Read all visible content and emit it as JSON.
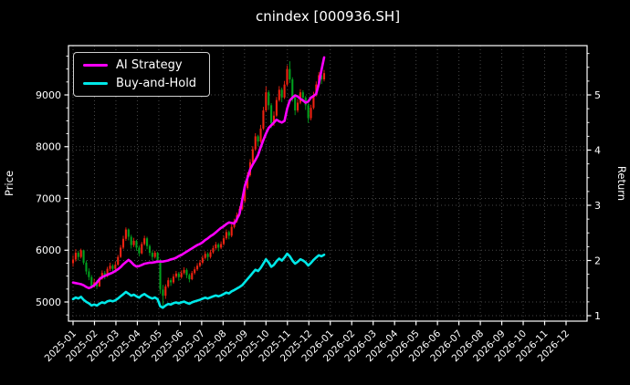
{
  "chart_data": {
    "type": "candlestick+line",
    "title": "cnindex [000936.SH]",
    "grid": true,
    "background": "#000000",
    "grid_color": "#494949",
    "spine_color": "#ffffff",
    "text_color": "#ffffff",
    "left_axis": {
      "label": "Price",
      "ticks": [
        5000,
        6000,
        7000,
        8000,
        9000
      ],
      "range": [
        4630,
        9952
      ],
      "minor_step": 250
    },
    "right_axis": {
      "label": "Return",
      "ticks": [
        1,
        2,
        3,
        4,
        5
      ],
      "range": [
        0.901,
        5.893
      ],
      "minor_step": 0.25
    },
    "x_axis": {
      "labels": [
        "2025-01",
        "2025-02",
        "2025-03",
        "2025-04",
        "2025-05",
        "2025-06",
        "2025-07",
        "2025-08",
        "2025-09",
        "2025-10",
        "2025-11",
        "2025-12",
        "2026-01",
        "2026-02",
        "2026-03",
        "2026-04",
        "2026-05",
        "2026-06",
        "2026-07",
        "2026-08",
        "2026-09",
        "2026-10",
        "2026-11",
        "2026-12"
      ],
      "range": [
        -0.213,
        23.98
      ]
    },
    "legend": {
      "position": "upper-left"
    },
    "candles": {
      "axis": "price",
      "up_color": "#ee2211",
      "down_color": "#00a01e",
      "t0": 0,
      "dt": 0.1233,
      "ohlc": [
        [
          5750,
          5900,
          5680,
          5820
        ],
        [
          5820,
          6020,
          5780,
          5950
        ],
        [
          5950,
          5990,
          5800,
          5870
        ],
        [
          5870,
          6030,
          5840,
          6000
        ],
        [
          6000,
          6010,
          5720,
          5760
        ],
        [
          5760,
          5800,
          5530,
          5590
        ],
        [
          5590,
          5650,
          5420,
          5480
        ],
        [
          5480,
          5520,
          5260,
          5310
        ],
        [
          5310,
          5450,
          5280,
          5380
        ],
        [
          5380,
          5420,
          5250,
          5300
        ],
        [
          5300,
          5490,
          5290,
          5450
        ],
        [
          5450,
          5610,
          5430,
          5560
        ],
        [
          5560,
          5600,
          5440,
          5500
        ],
        [
          5500,
          5680,
          5480,
          5640
        ],
        [
          5640,
          5760,
          5600,
          5700
        ],
        [
          5700,
          5730,
          5580,
          5640
        ],
        [
          5640,
          5780,
          5620,
          5720
        ],
        [
          5720,
          5910,
          5700,
          5870
        ],
        [
          5870,
          6100,
          5850,
          6050
        ],
        [
          6050,
          6280,
          6020,
          6220
        ],
        [
          6220,
          6440,
          6180,
          6400
        ],
        [
          6400,
          6420,
          6190,
          6260
        ],
        [
          6260,
          6300,
          6030,
          6100
        ],
        [
          6100,
          6240,
          6060,
          6180
        ],
        [
          6180,
          6200,
          5990,
          6050
        ],
        [
          6050,
          6090,
          5880,
          5940
        ],
        [
          5940,
          6160,
          5920,
          6120
        ],
        [
          6120,
          6280,
          6090,
          6230
        ],
        [
          6230,
          6260,
          6020,
          6080
        ],
        [
          6080,
          6110,
          5890,
          5950
        ],
        [
          5950,
          5990,
          5810,
          5870
        ],
        [
          5870,
          5990,
          5840,
          5950
        ],
        [
          5950,
          5970,
          5750,
          5810
        ],
        [
          5810,
          5830,
          5160,
          5240
        ],
        [
          5240,
          5330,
          4880,
          5120
        ],
        [
          5120,
          5340,
          5060,
          5300
        ],
        [
          5300,
          5470,
          5270,
          5420
        ],
        [
          5420,
          5460,
          5310,
          5380
        ],
        [
          5380,
          5540,
          5350,
          5490
        ],
        [
          5490,
          5600,
          5460,
          5550
        ],
        [
          5550,
          5580,
          5410,
          5480
        ],
        [
          5480,
          5610,
          5450,
          5560
        ],
        [
          5560,
          5670,
          5530,
          5620
        ],
        [
          5620,
          5650,
          5460,
          5520
        ],
        [
          5520,
          5550,
          5380,
          5440
        ],
        [
          5440,
          5600,
          5420,
          5560
        ],
        [
          5560,
          5680,
          5530,
          5630
        ],
        [
          5630,
          5750,
          5600,
          5700
        ],
        [
          5700,
          5810,
          5670,
          5760
        ],
        [
          5760,
          5900,
          5730,
          5850
        ],
        [
          5850,
          5980,
          5820,
          5930
        ],
        [
          5930,
          5960,
          5800,
          5870
        ],
        [
          5870,
          6010,
          5840,
          5960
        ],
        [
          5960,
          6090,
          5930,
          6040
        ],
        [
          6040,
          6160,
          6010,
          6110
        ],
        [
          6110,
          6140,
          5980,
          6050
        ],
        [
          6050,
          6170,
          6020,
          6120
        ],
        [
          6120,
          6280,
          6090,
          6230
        ],
        [
          6230,
          6400,
          6200,
          6350
        ],
        [
          6350,
          6380,
          6210,
          6280
        ],
        [
          6280,
          6500,
          6250,
          6450
        ],
        [
          6450,
          6610,
          6420,
          6560
        ],
        [
          6560,
          6730,
          6530,
          6680
        ],
        [
          6680,
          6850,
          6650,
          6800
        ],
        [
          6800,
          7010,
          6770,
          6950
        ],
        [
          6950,
          7260,
          6920,
          7200
        ],
        [
          7200,
          7510,
          7170,
          7450
        ],
        [
          7450,
          7760,
          7420,
          7700
        ],
        [
          7700,
          8010,
          7670,
          7950
        ],
        [
          7950,
          8260,
          7920,
          8200
        ],
        [
          8200,
          8230,
          8010,
          8100
        ],
        [
          8100,
          8420,
          8070,
          8350
        ],
        [
          8350,
          8770,
          8320,
          8700
        ],
        [
          8700,
          9160,
          8670,
          9050
        ],
        [
          9050,
          9090,
          8710,
          8800
        ],
        [
          8800,
          8840,
          8360,
          8450
        ],
        [
          8450,
          8680,
          8400,
          8600
        ],
        [
          8600,
          8960,
          8570,
          8900
        ],
        [
          8900,
          9170,
          8870,
          9100
        ],
        [
          9100,
          9140,
          8860,
          8950
        ],
        [
          8950,
          9270,
          8920,
          9200
        ],
        [
          9200,
          9570,
          9170,
          9500
        ],
        [
          9500,
          9650,
          9230,
          9300
        ],
        [
          9300,
          9340,
          8870,
          8950
        ],
        [
          8950,
          8990,
          8610,
          8700
        ],
        [
          8700,
          8920,
          8660,
          8850
        ],
        [
          8850,
          9110,
          8820,
          9050
        ],
        [
          9050,
          9090,
          8860,
          8950
        ],
        [
          8950,
          8980,
          8710,
          8800
        ],
        [
          8800,
          8840,
          8460,
          8550
        ],
        [
          8550,
          8810,
          8510,
          8750
        ],
        [
          8750,
          9060,
          8720,
          9000
        ],
        [
          9000,
          9260,
          8970,
          9200
        ],
        [
          9200,
          9440,
          9170,
          9380
        ],
        [
          9380,
          9420,
          9210,
          9300
        ],
        [
          9300,
          9480,
          9260,
          9420
        ]
      ]
    },
    "series": [
      {
        "name": "AI Strategy",
        "color": "#ff00ff",
        "axis": "return",
        "t0": 0,
        "dt": 0.1233,
        "values": [
          1.6,
          1.59,
          1.58,
          1.57,
          1.55,
          1.52,
          1.5,
          1.52,
          1.55,
          1.6,
          1.66,
          1.7,
          1.72,
          1.74,
          1.76,
          1.78,
          1.81,
          1.84,
          1.88,
          1.93,
          1.97,
          2.01,
          1.97,
          1.92,
          1.89,
          1.9,
          1.92,
          1.94,
          1.95,
          1.96,
          1.96,
          1.97,
          1.98,
          1.98,
          1.98,
          1.99,
          2.0,
          2.02,
          2.03,
          2.05,
          2.08,
          2.1,
          2.13,
          2.16,
          2.19,
          2.22,
          2.25,
          2.28,
          2.3,
          2.33,
          2.37,
          2.4,
          2.44,
          2.47,
          2.51,
          2.55,
          2.59,
          2.62,
          2.66,
          2.69,
          2.68,
          2.67,
          2.75,
          2.85,
          3.1,
          3.35,
          3.5,
          3.65,
          3.74,
          3.82,
          3.91,
          4.05,
          4.18,
          4.3,
          4.4,
          4.45,
          4.5,
          4.55,
          4.52,
          4.5,
          4.53,
          4.75,
          4.9,
          4.95,
          4.99,
          4.97,
          4.93,
          4.9,
          4.86,
          4.88,
          4.95,
          4.98,
          5.02,
          5.2,
          5.45,
          5.68
        ]
      },
      {
        "name": "Buy-and-Hold",
        "color": "#00e8e8",
        "axis": "return",
        "t0": 0,
        "dt": 0.1233,
        "values": [
          1.3,
          1.329,
          1.311,
          1.34,
          1.287,
          1.249,
          1.224,
          1.186,
          1.202,
          1.184,
          1.217,
          1.242,
          1.229,
          1.26,
          1.273,
          1.26,
          1.278,
          1.311,
          1.351,
          1.389,
          1.43,
          1.398,
          1.363,
          1.38,
          1.351,
          1.327,
          1.367,
          1.392,
          1.358,
          1.329,
          1.311,
          1.329,
          1.298,
          1.17,
          1.144,
          1.184,
          1.211,
          1.202,
          1.226,
          1.24,
          1.224,
          1.242,
          1.255,
          1.233,
          1.215,
          1.242,
          1.258,
          1.273,
          1.287,
          1.307,
          1.325,
          1.311,
          1.331,
          1.349,
          1.365,
          1.351,
          1.367,
          1.392,
          1.418,
          1.403,
          1.441,
          1.465,
          1.492,
          1.519,
          1.552,
          1.608,
          1.664,
          1.72,
          1.776,
          1.832,
          1.809,
          1.865,
          1.943,
          2.021,
          1.966,
          1.887,
          1.921,
          1.988,
          2.033,
          1.999,
          2.055,
          2.122,
          2.077,
          1.999,
          1.943,
          1.977,
          2.021,
          1.999,
          1.966,
          1.91,
          1.954,
          2.01,
          2.055,
          2.095,
          2.077,
          2.104
        ]
      }
    ]
  }
}
